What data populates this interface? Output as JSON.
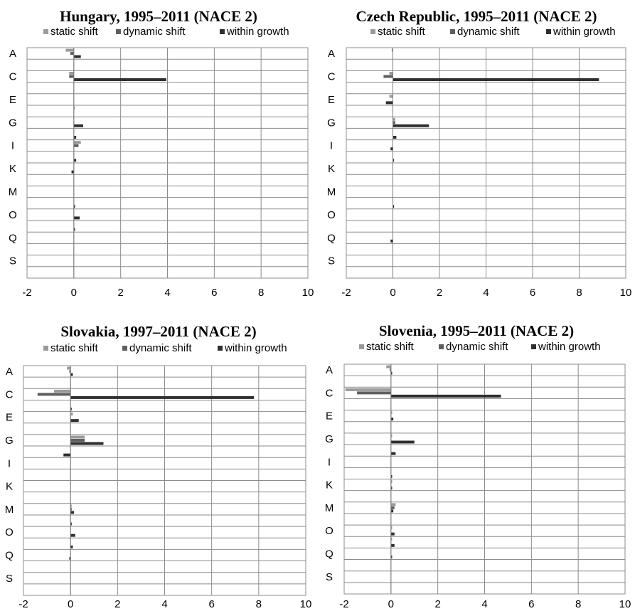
{
  "chart_data": [
    {
      "type": "bar",
      "orientation": "horizontal",
      "title": "Hungary, 1995–2011 (NACE 2)",
      "xlim": [
        -2,
        10
      ],
      "xticks": [
        "-2",
        "0",
        "2",
        "4",
        "6",
        "8",
        "10"
      ],
      "category_labels": [
        "A",
        "C",
        "E",
        "G",
        "I",
        "K",
        "M",
        "O",
        "Q",
        "S"
      ],
      "grid": true,
      "legend_position": "top",
      "series": [
        {
          "name": "static shift",
          "color": "#9a9a9a",
          "values": [
            -0.35,
            0.0,
            -0.2,
            0.0,
            0.0,
            0.05,
            0.0,
            0.0,
            0.3,
            0.0,
            0.0,
            0.0,
            0.0,
            0.0,
            0.0,
            0.0,
            0.0,
            0.0,
            0.0,
            0.0
          ]
        },
        {
          "name": "dynamic shift",
          "color": "#5f5f5f",
          "values": [
            -0.15,
            0.0,
            -0.2,
            0.0,
            0.0,
            0.0,
            0.0,
            0.0,
            0.2,
            0.0,
            0.0,
            0.0,
            0.0,
            0.0,
            0.0,
            0.0,
            0.0,
            0.0,
            0.0,
            0.0
          ]
        },
        {
          "name": "within growth",
          "color": "#2f2f2f",
          "values": [
            0.3,
            0.0,
            3.95,
            0.0,
            0.0,
            0.0,
            0.4,
            0.1,
            0.0,
            0.1,
            -0.1,
            0.0,
            0.0,
            0.05,
            0.25,
            0.05,
            0.0,
            0.0,
            0.0,
            0.0
          ]
        }
      ]
    },
    {
      "type": "bar",
      "orientation": "horizontal",
      "title": "Czech Republic, 1995–2011 (NACE 2)",
      "xlim": [
        -2,
        10
      ],
      "xticks": [
        "-2",
        "0",
        "2",
        "4",
        "6",
        "8",
        "10"
      ],
      "category_labels": [
        "A",
        "C",
        "E",
        "G",
        "I",
        "K",
        "M",
        "O",
        "Q",
        "S"
      ],
      "grid": true,
      "legend_position": "top",
      "series": [
        {
          "name": "static shift",
          "color": "#9a9a9a",
          "values": [
            -0.05,
            0.0,
            -0.15,
            0.0,
            -0.15,
            0.0,
            0.1,
            0.0,
            0.0,
            0.0,
            0.0,
            0.0,
            0.0,
            0.0,
            0.0,
            0.0,
            0.0,
            0.0,
            0.0,
            0.0
          ]
        },
        {
          "name": "dynamic shift",
          "color": "#5f5f5f",
          "values": [
            0.0,
            0.0,
            -0.4,
            0.0,
            0.0,
            0.0,
            0.1,
            0.0,
            0.0,
            0.0,
            0.0,
            0.0,
            0.0,
            0.0,
            0.0,
            0.0,
            0.0,
            0.0,
            0.0,
            0.0
          ]
        },
        {
          "name": "within growth",
          "color": "#2f2f2f",
          "values": [
            0.0,
            0.0,
            8.85,
            0.0,
            -0.3,
            0.0,
            1.55,
            0.15,
            -0.1,
            0.05,
            0.0,
            0.0,
            0.0,
            0.05,
            0.0,
            0.0,
            -0.1,
            0.0,
            0.0,
            0.0
          ]
        }
      ]
    },
    {
      "type": "bar",
      "orientation": "horizontal",
      "title": "Slovakia, 1997–2011 (NACE 2)",
      "xlim": [
        -2,
        10
      ],
      "xticks": [
        "-2",
        "0",
        "2",
        "4",
        "6",
        "8",
        "10"
      ],
      "category_labels": [
        "A",
        "C",
        "E",
        "G",
        "I",
        "K",
        "M",
        "O",
        "Q",
        "S"
      ],
      "grid": true,
      "legend_position": "top",
      "series": [
        {
          "name": "static shift",
          "color": "#9a9a9a",
          "values": [
            -0.15,
            0.0,
            -0.7,
            0.0,
            0.1,
            0.0,
            0.6,
            0.0,
            0.0,
            0.0,
            0.0,
            0.0,
            0.05,
            0.0,
            0.0,
            0.0,
            0.0,
            0.0,
            0.0,
            0.0
          ]
        },
        {
          "name": "dynamic shift",
          "color": "#5f5f5f",
          "values": [
            -0.05,
            0.0,
            -1.4,
            0.0,
            0.0,
            0.0,
            0.6,
            0.0,
            0.0,
            0.0,
            0.0,
            0.0,
            0.05,
            0.0,
            0.0,
            0.0,
            0.0,
            0.0,
            0.0,
            0.0
          ]
        },
        {
          "name": "within growth",
          "color": "#2f2f2f",
          "values": [
            0.1,
            0.0,
            7.8,
            0.05,
            0.35,
            0.0,
            1.4,
            -0.3,
            0.0,
            0.0,
            0.0,
            0.0,
            0.15,
            0.05,
            0.2,
            0.1,
            -0.05,
            0.0,
            0.0,
            0.0
          ]
        }
      ]
    },
    {
      "type": "bar",
      "orientation": "horizontal",
      "title": "Slovenia, 1995–2011 (NACE 2)",
      "xlim": [
        -2,
        10
      ],
      "xticks": [
        "-2",
        "0",
        "2",
        "4",
        "6",
        "8",
        "10"
      ],
      "category_labels": [
        "A",
        "C",
        "E",
        "G",
        "I",
        "K",
        "M",
        "O",
        "Q",
        "S"
      ],
      "grid": true,
      "legend_position": "top",
      "series": [
        {
          "name": "static shift",
          "color": "#9a9a9a",
          "values": [
            -0.2,
            0.0,
            -1.95,
            0.0,
            0.05,
            0.0,
            0.05,
            0.0,
            0.0,
            0.0,
            0.05,
            0.0,
            0.2,
            0.0,
            0.05,
            0.05,
            0.0,
            0.0,
            0.0,
            0.0
          ]
        },
        {
          "name": "dynamic shift",
          "color": "#5f5f5f",
          "values": [
            -0.05,
            0.0,
            -1.45,
            0.0,
            0.0,
            0.0,
            0.0,
            0.0,
            0.0,
            0.0,
            0.0,
            0.0,
            0.15,
            0.0,
            0.0,
            0.0,
            0.0,
            0.0,
            0.0,
            0.0
          ]
        },
        {
          "name": "within growth",
          "color": "#2f2f2f",
          "values": [
            0.05,
            0.0,
            4.7,
            0.0,
            0.1,
            0.0,
            1.0,
            0.2,
            0.0,
            0.05,
            0.05,
            0.0,
            0.1,
            0.0,
            0.15,
            0.15,
            0.05,
            0.0,
            0.0,
            0.0
          ]
        }
      ]
    }
  ]
}
